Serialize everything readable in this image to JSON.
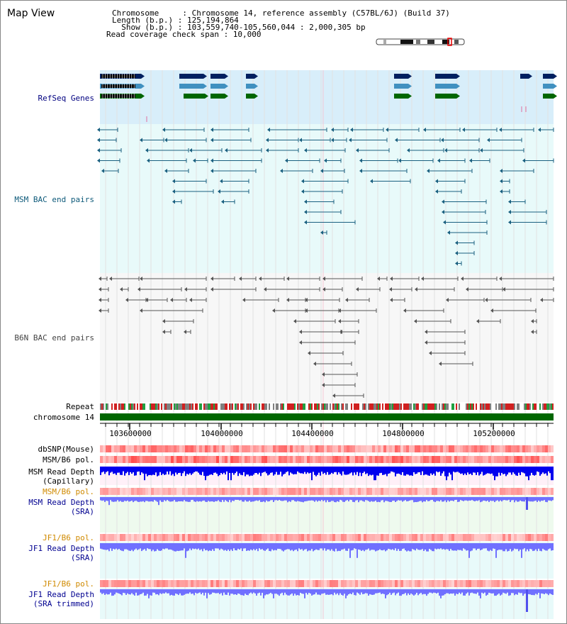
{
  "map_view": {
    "title": "Map View",
    "chromosome_line": "Chromosome     : Chromosome 14, reference assembly (C57BL/6J) (Build 37)",
    "length_line": "Length (b.p.) : 125,194,864",
    "show_line": "  Show (b.p.) : 103,559,740-105,560,044 : 2,000,305 bp",
    "read_coverage_line": "Read coverage check span : 10,000"
  },
  "tracks": {
    "refseq": {
      "label": "RefSeq Genes",
      "color": "#000080"
    },
    "msm_bac": {
      "label": "MSM BAC end pairs",
      "color": "#0e5a7a"
    },
    "b6n_bac": {
      "label": "B6N BAC end pairs",
      "color": "#444444"
    },
    "repeat": {
      "label": "Repeat",
      "color": "#000000"
    },
    "chromosome": {
      "label": "chromosome 14",
      "color": "#000000"
    },
    "dbsnp": {
      "label": "dbSNP(Mouse)",
      "color": "#000000"
    },
    "msm_b6_pol_1": {
      "label": "MSM/B6 pol.",
      "color": "#000000"
    },
    "msm_read_depth_cap": {
      "label": "MSM Read Depth\n(Capillary)",
      "color": "#000000"
    },
    "msm_b6_pol_2": {
      "label": "MSM/B6 pol.",
      "color": "#d08a00"
    },
    "msm_read_depth_sra": {
      "label": "MSM Read Depth\n(SRA)",
      "color": "#000090"
    },
    "jf1_b6_pol_1": {
      "label": "JF1/B6 pol.",
      "color": "#d08a00"
    },
    "jf1_read_depth_sra": {
      "label": "JF1 Read Depth\n(SRA)",
      "color": "#000090"
    },
    "jf1_b6_pol_2": {
      "label": "JF1/B6 pol.",
      "color": "#d08a00"
    },
    "jf1_read_depth_trim": {
      "label": "JF1 Read Depth\n(SRA trimmed)",
      "color": "#000090"
    }
  },
  "axis": {
    "ticks": [
      "103600000",
      "104000000",
      "104400000",
      "104800000",
      "105200000"
    ]
  },
  "colors": {
    "refseq_bg": "#d8eefa",
    "msm_bg": "#e8fafa",
    "b6n_bg": "#f7f7f7",
    "chromosome_bar": "#006600",
    "snp_red": "#f04848",
    "depth_blue": "#0000ee",
    "depth_light_blue": "#7070ff",
    "gene_dark": "#002060",
    "gene_teal": "#4090c0",
    "gene_green": "#006600"
  }
}
